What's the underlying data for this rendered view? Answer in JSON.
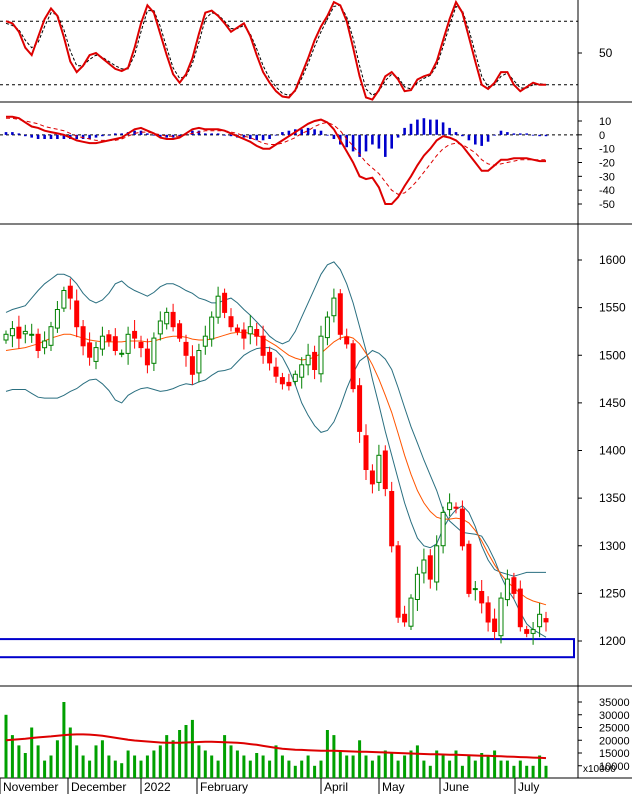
{
  "chart_data": {
    "type": "stock-chart",
    "x_labels": [
      "November",
      "December",
      "2022",
      "February",
      "April",
      "May",
      "June",
      "July"
    ],
    "colors": {
      "up": "#008000",
      "down": "#ff0000",
      "indicator_line": "#dd0000",
      "bollinger": "#2a6f80",
      "ma_line": "#ff5500",
      "histogram": "#0000cc",
      "support_box": "#0000cc",
      "volume": "#00a000",
      "volume_ma": "#dd0000"
    },
    "panels": {
      "stochastic": {
        "y_ticks": [
          "50"
        ],
        "levels": [
          80,
          20
        ],
        "ylim": [
          0,
          100
        ],
        "k": [
          80,
          78,
          70,
          55,
          48,
          65,
          82,
          92,
          85,
          65,
          42,
          32,
          38,
          48,
          50,
          45,
          40,
          35,
          33,
          36,
          55,
          78,
          95,
          88,
          68,
          48,
          30,
          22,
          30,
          45,
          68,
          88,
          90,
          85,
          78,
          70,
          74,
          78,
          66,
          48,
          32,
          22,
          14,
          9,
          8,
          15,
          30,
          45,
          62,
          75,
          85,
          98,
          95,
          80,
          55,
          28,
          8,
          6,
          15,
          28,
          32,
          25,
          14,
          15,
          25,
          28,
          30,
          42,
          62,
          82,
          98,
          88,
          65,
          42,
          20,
          16,
          22,
          32,
          32,
          20,
          14,
          18,
          22,
          20,
          20
        ],
        "d": [
          78,
          76,
          72,
          62,
          55,
          60,
          75,
          88,
          86,
          72,
          52,
          38,
          38,
          44,
          48,
          46,
          42,
          38,
          35,
          35,
          48,
          70,
          90,
          90,
          75,
          55,
          36,
          26,
          28,
          40,
          60,
          82,
          88,
          86,
          80,
          73,
          73,
          76,
          68,
          54,
          38,
          26,
          18,
          12,
          10,
          14,
          26,
          40,
          56,
          70,
          82,
          94,
          95,
          84,
          64,
          38,
          16,
          10,
          14,
          24,
          30,
          27,
          18,
          16,
          22,
          26,
          29,
          38,
          56,
          76,
          94,
          90,
          72,
          50,
          28,
          18,
          20,
          28,
          31,
          24,
          17,
          17,
          20,
          21,
          20
        ]
      },
      "macd": {
        "y_ticks": [
          "10",
          "0",
          "-10",
          "-20",
          "-30",
          "-40",
          "-50"
        ],
        "ylim": [
          -55,
          15
        ],
        "macd_line": [
          13,
          13,
          12,
          9,
          6,
          5,
          3,
          2,
          1,
          0,
          -2,
          -4,
          -5,
          -6,
          -6,
          -5,
          -4,
          -3,
          -2,
          1,
          4,
          5,
          3,
          1,
          -2,
          -3,
          -3,
          -2,
          1,
          4,
          5,
          4,
          4,
          4,
          3,
          1,
          -1,
          -3,
          -5,
          -8,
          -10,
          -10,
          -7,
          -4,
          -1,
          2,
          5,
          8,
          10,
          11,
          9,
          4,
          -4,
          -12,
          -20,
          -30,
          -32,
          -31,
          -38,
          -50,
          -50,
          -45,
          -37,
          -30,
          -22,
          -15,
          -10,
          -4,
          -1,
          -2,
          -4,
          -8,
          -14,
          -20,
          -26,
          -26,
          -22,
          -18,
          -18,
          -17,
          -17,
          -17,
          -18,
          -19,
          -19
        ],
        "signal_line": [
          12,
          12,
          11,
          10,
          9,
          8,
          6,
          5,
          4,
          3,
          1,
          -1,
          -2,
          -3,
          -4,
          -4,
          -4,
          -4,
          -3,
          -1,
          1,
          2,
          2,
          1,
          0,
          -1,
          -1,
          -1,
          0,
          1,
          2,
          3,
          3,
          3,
          3,
          2,
          1,
          -1,
          -2,
          -4,
          -6,
          -7,
          -7,
          -6,
          -4,
          -2,
          1,
          3,
          6,
          8,
          9,
          7,
          3,
          -3,
          -8,
          -14,
          -20,
          -24,
          -28,
          -34,
          -40,
          -43,
          -42,
          -38,
          -33,
          -27,
          -21,
          -15,
          -10,
          -7,
          -6,
          -7,
          -10,
          -13,
          -18,
          -21,
          -22,
          -21,
          -20,
          -19,
          -18,
          -18,
          -18,
          -18,
          -18
        ],
        "histogram": [
          2,
          2,
          1,
          -1,
          -2,
          -3,
          -3,
          -3,
          -3,
          -3,
          -3,
          -3,
          -3,
          -3,
          -2,
          -1,
          0,
          1,
          1,
          2,
          3,
          3,
          1,
          0,
          -2,
          -2,
          -2,
          -1,
          1,
          3,
          3,
          1,
          1,
          1,
          0,
          -1,
          -2,
          -2,
          -3,
          -4,
          -4,
          -3,
          0,
          2,
          3,
          4,
          4,
          5,
          4,
          3,
          0,
          -3,
          -7,
          -9,
          -12,
          -16,
          -12,
          -7,
          -10,
          -16,
          -10,
          -2,
          5,
          8,
          11,
          12,
          11,
          11,
          9,
          5,
          2,
          -1,
          -4,
          -7,
          -8,
          -5,
          0,
          3,
          2,
          1,
          1,
          1,
          0,
          -1,
          -1
        ]
      },
      "price": {
        "y_ticks": [
          "1600",
          "1550",
          "1500",
          "1450",
          "1400",
          "1350",
          "1300",
          "1250",
          "1200"
        ],
        "ylim": [
          1180,
          1640
        ],
        "close": [
          1522,
          1528,
          1518,
          1525,
          1522,
          1505,
          1515,
          1530,
          1548,
          1568,
          1560,
          1530,
          1510,
          1498,
          1508,
          1520,
          1515,
          1505,
          1502,
          1522,
          1518,
          1508,
          1490,
          1518,
          1536,
          1545,
          1530,
          1518,
          1500,
          1480,
          1505,
          1520,
          1540,
          1562,
          1545,
          1530,
          1525,
          1518,
          1530,
          1520,
          1500,
          1492,
          1478,
          1470,
          1468,
          1480,
          1490,
          1500,
          1485,
          1520,
          1540,
          1560,
          1522,
          1512,
          1465,
          1420,
          1380,
          1365,
          1395,
          1360,
          1300,
          1225,
          1220,
          1245,
          1270,
          1285,
          1265,
          1300,
          1335,
          1345,
          1340,
          1300,
          1250,
          1255,
          1240,
          1220,
          1210,
          1245,
          1265,
          1250,
          1215,
          1208,
          1212,
          1228,
          1220
        ],
        "upper_band": [
          1545,
          1548,
          1550,
          1552,
          1560,
          1568,
          1575,
          1580,
          1585,
          1585,
          1582,
          1575,
          1565,
          1558,
          1555,
          1558,
          1565,
          1575,
          1578,
          1572,
          1568,
          1565,
          1562,
          1566,
          1572,
          1575,
          1575,
          1572,
          1568,
          1565,
          1560,
          1558,
          1555,
          1555,
          1558,
          1560,
          1555,
          1548,
          1542,
          1535,
          1528,
          1520,
          1515,
          1512,
          1515,
          1525,
          1540,
          1555,
          1570,
          1585,
          1595,
          1598,
          1590,
          1575,
          1555,
          1530,
          1505,
          1475,
          1448,
          1420,
          1395,
          1370,
          1345,
          1325,
          1308,
          1300,
          1298,
          1302,
          1318,
          1330,
          1338,
          1342,
          1335,
          1320,
          1300,
          1285,
          1275,
          1272,
          1270,
          1268,
          1270,
          1272,
          1272,
          1272,
          1272
        ],
        "middle_band": [
          1505,
          1506,
          1507,
          1508,
          1510,
          1512,
          1515,
          1518,
          1520,
          1522,
          1522,
          1520,
          1518,
          1516,
          1515,
          1514,
          1514,
          1514,
          1514,
          1515,
          1515,
          1515,
          1514,
          1515,
          1517,
          1519,
          1520,
          1520,
          1519,
          1517,
          1516,
          1516,
          1517,
          1519,
          1521,
          1523,
          1524,
          1524,
          1523,
          1521,
          1518,
          1514,
          1510,
          1505,
          1500,
          1497,
          1495,
          1496,
          1498,
          1502,
          1508,
          1514,
          1518,
          1520,
          1518,
          1512,
          1502,
          1490,
          1475,
          1458,
          1440,
          1418,
          1395,
          1375,
          1358,
          1345,
          1336,
          1330,
          1328,
          1328,
          1329,
          1328,
          1324,
          1316,
          1305,
          1292,
          1280,
          1270,
          1262,
          1256,
          1250,
          1245,
          1242,
          1240,
          1238
        ],
        "lower_band": [
          1462,
          1464,
          1464,
          1464,
          1460,
          1456,
          1455,
          1455,
          1455,
          1458,
          1462,
          1465,
          1470,
          1474,
          1475,
          1470,
          1463,
          1453,
          1450,
          1458,
          1462,
          1465,
          1466,
          1464,
          1462,
          1463,
          1465,
          1468,
          1470,
          1469,
          1472,
          1474,
          1479,
          1483,
          1484,
          1486,
          1493,
          1500,
          1504,
          1507,
          1508,
          1508,
          1505,
          1498,
          1485,
          1469,
          1450,
          1437,
          1426,
          1419,
          1421,
          1430,
          1446,
          1465,
          1481,
          1494,
          1499,
          1505,
          1502,
          1496,
          1485,
          1466,
          1445,
          1425,
          1408,
          1390,
          1374,
          1358,
          1338,
          1326,
          1320,
          1314,
          1313,
          1312,
          1310,
          1299,
          1285,
          1268,
          1254,
          1244,
          1230,
          1218,
          1212,
          1208,
          1204
        ]
      },
      "volume": {
        "y_ticks": [
          "35000",
          "30000",
          "25000",
          "20000",
          "15000",
          "10000"
        ],
        "unit_label": "x10000",
        "ylim": [
          0,
          38000
        ],
        "values": [
          30000,
          22000,
          18000,
          15000,
          25000,
          18000,
          12000,
          14000,
          20000,
          35000,
          25000,
          18000,
          14000,
          12000,
          18000,
          20000,
          14000,
          12000,
          11000,
          16000,
          14000,
          12000,
          14000,
          16000,
          18000,
          22000,
          20000,
          24000,
          26000,
          28000,
          18000,
          16000,
          14000,
          12000,
          22000,
          18000,
          16000,
          14000,
          12000,
          15000,
          14000,
          12000,
          18000,
          14000,
          12000,
          10000,
          12000,
          14000,
          10000,
          12000,
          24000,
          22000,
          16000,
          14000,
          14000,
          20000,
          14000,
          12000,
          14000,
          16000,
          15000,
          12000,
          14000,
          16000,
          18000,
          12000,
          10000,
          16000,
          14000,
          12000,
          16000,
          10000,
          14000,
          12000,
          15000,
          14000,
          16000,
          12000,
          12000,
          10000,
          12000,
          10000,
          10000,
          14000,
          10000
        ],
        "ma": [
          20000,
          20200,
          20400,
          20600,
          20900,
          21100,
          21300,
          21500,
          21800,
          22000,
          22200,
          22300,
          22300,
          22200,
          22000,
          21800,
          21400,
          21000,
          20600,
          20200,
          19900,
          19700,
          19500,
          19300,
          19100,
          19000,
          19000,
          19000,
          19100,
          19200,
          19300,
          19400,
          19400,
          19300,
          19200,
          19100,
          19000,
          18800,
          18500,
          18200,
          17800,
          17400,
          17000,
          16700,
          16500,
          16300,
          16200,
          16100,
          16000,
          15900,
          15900,
          15900,
          15800,
          15700,
          15600,
          15500,
          15500,
          15400,
          15300,
          15200,
          15100,
          15000,
          14900,
          14800,
          14700,
          14600,
          14500,
          14500,
          14400,
          14300,
          14300,
          14200,
          14100,
          14000,
          13900,
          13900,
          13800,
          13700,
          13600,
          13500,
          13400,
          13300,
          13200,
          13100,
          13000
        ]
      }
    },
    "support_zone": [
      1183,
      1202
    ]
  }
}
